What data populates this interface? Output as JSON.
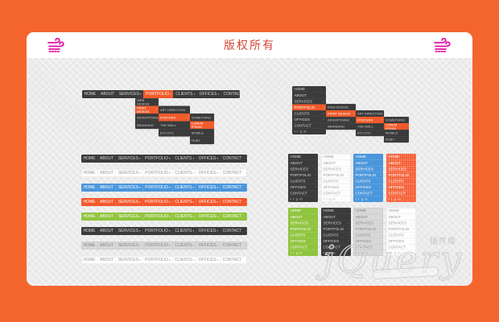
{
  "frame": {
    "bg": "#f4652e",
    "canvas_bg": "#ececec"
  },
  "header": {
    "title": "版权所有",
    "title_color": "#d34836",
    "icon": "wind-icon",
    "icon_color": "#e013a3"
  },
  "menu": {
    "items": [
      {
        "label": "HOME",
        "has_sub": false
      },
      {
        "label": "ABOUT",
        "has_sub": false
      },
      {
        "label": "SERVICES",
        "has_sub": true
      },
      {
        "label": "PORTFOLIO",
        "has_sub": true
      },
      {
        "label": "CLIENTS",
        "has_sub": true
      },
      {
        "label": "OFFICES",
        "has_sub": true
      },
      {
        "label": "CONTACT",
        "has_sub": false
      }
    ],
    "active_label": "PORTFOLIO",
    "social": [
      {
        "name": "facebook-icon",
        "glyph": "f"
      },
      {
        "name": "twitter-icon",
        "glyph": "t"
      },
      {
        "name": "googleplus-icon",
        "glyph": "g"
      },
      {
        "name": "linkedin-icon",
        "glyph": "in"
      }
    ]
  },
  "cascade": {
    "levels": [
      {
        "items": [
          "WEB DESIGN",
          "PRINT DESIGN",
          "ADVERTISING",
          "BRANDING"
        ],
        "active_index": 1
      },
      {
        "items": [
          "ART DIRECTION",
          "POSTERS",
          "THE WALL",
          "ETC ETC"
        ],
        "active_index": 1
      },
      {
        "items": [
          "SOMETHING",
          "LOREM IPSUM",
          "MOBILE",
          "RUBY"
        ],
        "active_index": 1
      }
    ]
  },
  "horizontal_bars": [
    "dark",
    "white",
    "blue",
    "orange",
    "green",
    "dark",
    "gray",
    "white"
  ],
  "vertical_panels": [
    "dark",
    "white",
    "blue",
    "orange-dot",
    "green",
    "dark",
    "gray",
    "white"
  ],
  "theme_colors": {
    "dark": "#3b3b3b",
    "white": "#ffffff",
    "blue": "#4a96dc",
    "orange": "#f4572b",
    "green": "#8fc43e",
    "gray": "#d8d8d8",
    "accent": "#f05b2b"
  },
  "watermark": {
    "script": "jQuery",
    "cn_label": "插件库"
  }
}
